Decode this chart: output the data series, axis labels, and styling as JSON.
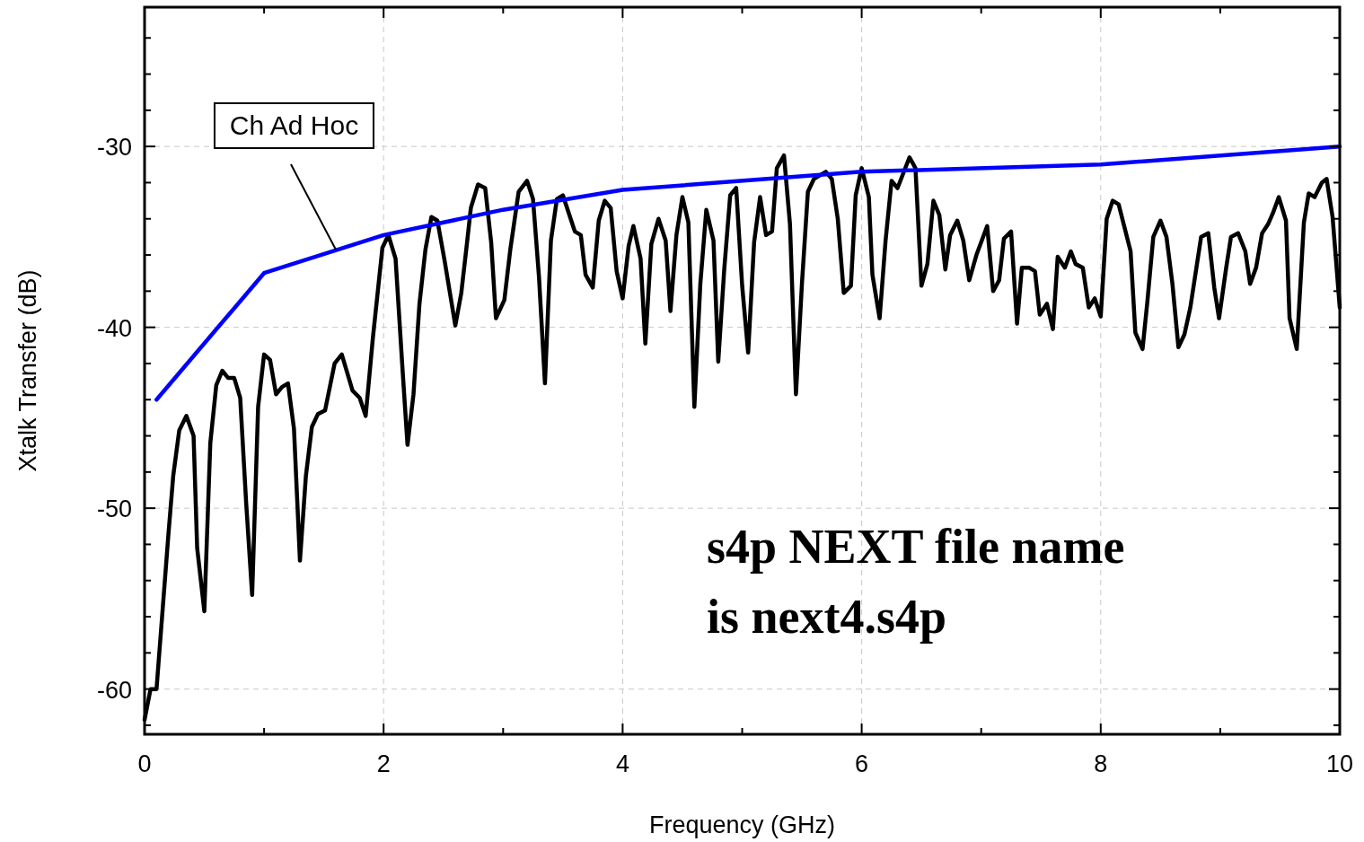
{
  "chart_data": {
    "type": "line",
    "xlabel": "Frequency (GHz)",
    "ylabel": "Xtalk Transfer (dB)",
    "xlim": [
      0,
      10
    ],
    "ylim": [
      -62.5,
      -22.3
    ],
    "xticks": [
      0,
      {
        "value": 1,
        "label": null
      },
      2,
      {
        "value": 3,
        "label": null
      },
      4,
      {
        "value": 5,
        "label": null
      },
      6,
      {
        "value": 7,
        "label": null
      },
      8,
      {
        "value": 9,
        "label": null
      },
      10
    ],
    "yticks": [
      {
        "value": -62,
        "label": null
      },
      -60,
      {
        "value": -58,
        "label": null
      },
      {
        "value": -56,
        "label": null
      },
      {
        "value": -54,
        "label": null
      },
      {
        "value": -52,
        "label": null
      },
      -50,
      {
        "value": -48,
        "label": null
      },
      {
        "value": -46,
        "label": null
      },
      {
        "value": -44,
        "label": null
      },
      {
        "value": -42,
        "label": null
      },
      -40,
      {
        "value": -38,
        "label": null
      },
      {
        "value": -36,
        "label": null
      },
      {
        "value": -34,
        "label": null
      },
      {
        "value": -32,
        "label": null
      },
      -30,
      {
        "value": -28,
        "label": null
      },
      {
        "value": -26,
        "label": null
      },
      {
        "value": -24,
        "label": null
      }
    ],
    "grid": true,
    "marker": "none",
    "line_style": "solid",
    "series": [
      {
        "color": "#000000",
        "x": [
          0,
          0.05,
          0.1,
          0.2,
          0.24,
          0.29,
          0.35,
          0.41,
          0.44,
          0.5,
          0.55,
          0.6,
          0.65,
          0.7,
          0.75,
          0.8,
          0.85,
          0.9,
          0.95,
          1,
          1.05,
          1.1,
          1.15,
          1.2,
          1.25,
          1.3,
          1.35,
          1.4,
          1.45,
          1.51,
          1.59,
          1.65,
          1.74,
          1.8,
          1.85,
          1.91,
          1.99,
          2.04,
          2.1,
          2.16,
          2.2,
          2.25,
          2.3,
          2.35,
          2.4,
          2.45,
          2.51,
          2.6,
          2.65,
          2.7,
          2.73,
          2.79,
          2.85,
          2.9,
          2.94,
          3.01,
          3.06,
          3.13,
          3.2,
          3.25,
          3.3,
          3.35,
          3.4,
          3.45,
          3.5,
          3.55,
          3.6,
          3.65,
          3.69,
          3.75,
          3.8,
          3.85,
          3.9,
          3.95,
          4,
          4.05,
          4.09,
          4.15,
          4.19,
          4.24,
          4.3,
          4.36,
          4.4,
          4.45,
          4.5,
          4.55,
          4.6,
          4.65,
          4.7,
          4.76,
          4.8,
          4.85,
          4.9,
          4.95,
          5,
          5.05,
          5.1,
          5.15,
          5.2,
          5.25,
          5.29,
          5.35,
          5.4,
          5.45,
          5.5,
          5.55,
          5.6,
          5.7,
          5.75,
          5.8,
          5.85,
          5.91,
          5.95,
          6,
          6.06,
          6.09,
          6.15,
          6.2,
          6.25,
          6.3,
          6.4,
          6.45,
          6.5,
          6.55,
          6.6,
          6.65,
          6.7,
          6.74,
          6.8,
          6.85,
          6.9,
          6.96,
          7.05,
          7.1,
          7.15,
          7.19,
          7.25,
          7.3,
          7.34,
          7.4,
          7.45,
          7.49,
          7.55,
          7.6,
          7.64,
          7.7,
          7.75,
          7.79,
          7.85,
          7.9,
          7.95,
          8,
          8.05,
          8.1,
          8.15,
          8.25,
          8.29,
          8.35,
          8.39,
          8.44,
          8.5,
          8.55,
          8.6,
          8.65,
          8.7,
          8.75,
          8.84,
          8.9,
          8.95,
          8.99,
          9.05,
          9.09,
          9.15,
          9.21,
          9.25,
          9.3,
          9.35,
          9.4,
          9.44,
          9.49,
          9.55,
          9.58,
          9.64,
          9.7,
          9.74,
          9.79,
          9.85,
          9.89,
          9.94,
          10
        ],
        "values": [
          -61.7,
          -60.0,
          -60.0,
          -51.4,
          -48.2,
          -45.7,
          -44.9,
          -46.0,
          -52.2,
          -55.7,
          -46.4,
          -43.2,
          -42.4,
          -42.8,
          -42.8,
          -43.9,
          -49.7,
          -54.8,
          -44.4,
          -41.5,
          -41.8,
          -43.7,
          -43.3,
          -43.1,
          -45.6,
          -52.9,
          -48.2,
          -45.5,
          -44.8,
          -44.6,
          -42.0,
          -41.5,
          -43.5,
          -43.9,
          -44.9,
          -40.6,
          -35.6,
          -34.9,
          -36.2,
          -42.5,
          -46.5,
          -43.7,
          -38.7,
          -35.7,
          -33.9,
          -34.1,
          -36.3,
          -39.9,
          -38.1,
          -35.2,
          -33.4,
          -32.1,
          -32.3,
          -35.3,
          -39.5,
          -38.5,
          -35.7,
          -32.5,
          -31.9,
          -32.9,
          -37.2,
          -43.1,
          -35.2,
          -32.9,
          -32.7,
          -33.7,
          -34.7,
          -34.9,
          -37.1,
          -37.8,
          -34.1,
          -33.0,
          -33.4,
          -36.9,
          -38.4,
          -35.5,
          -34.4,
          -36.2,
          -40.9,
          -35.4,
          -34.0,
          -35.2,
          -39.1,
          -34.9,
          -32.8,
          -34.2,
          -44.4,
          -37.6,
          -33.5,
          -35.2,
          -41.9,
          -36.8,
          -32.7,
          -32.3,
          -37.7,
          -41.4,
          -35.3,
          -32.8,
          -34.9,
          -34.7,
          -31.2,
          -30.5,
          -34.3,
          -43.7,
          -37.6,
          -32.5,
          -31.8,
          -31.4,
          -31.8,
          -34.0,
          -38.1,
          -37.7,
          -32.7,
          -31.2,
          -32.8,
          -37.1,
          -39.5,
          -35.2,
          -31.9,
          -32.3,
          -30.6,
          -31.2,
          -37.7,
          -36.5,
          -33.0,
          -33.8,
          -36.8,
          -34.9,
          -34.1,
          -35.2,
          -37.4,
          -36.0,
          -34.4,
          -38.0,
          -37.4,
          -35.1,
          -34.7,
          -39.8,
          -36.7,
          -36.7,
          -36.9,
          -39.3,
          -38.7,
          -40.1,
          -36.1,
          -36.7,
          -35.8,
          -36.5,
          -36.7,
          -38.9,
          -38.4,
          -39.4,
          -34.0,
          -33.0,
          -33.2,
          -35.8,
          -40.3,
          -41.2,
          -38.6,
          -35.0,
          -34.1,
          -35.0,
          -37.6,
          -41.1,
          -40.4,
          -38.9,
          -35.0,
          -34.8,
          -37.8,
          -39.5,
          -36.7,
          -35.0,
          -34.8,
          -35.8,
          -37.6,
          -36.7,
          -34.8,
          -34.3,
          -33.7,
          -32.8,
          -34.1,
          -39.5,
          -41.2,
          -34.2,
          -32.6,
          -32.8,
          -32.0,
          -31.8,
          -33.9,
          -38.9
        ]
      },
      {
        "color": "#0000ff",
        "x": [
          0.1,
          1,
          2,
          3,
          4,
          6,
          8,
          10
        ],
        "values": [
          -44.0,
          -37.0,
          -34.9,
          -33.5,
          -32.4,
          -31.4,
          -31.0,
          -30.0
        ]
      }
    ],
    "annotations": [
      {
        "text": "Ch Ad Hoc",
        "x": 1.6,
        "y": -35.7
      },
      "s4p NEXT file name\nis next4.s4p"
    ]
  }
}
